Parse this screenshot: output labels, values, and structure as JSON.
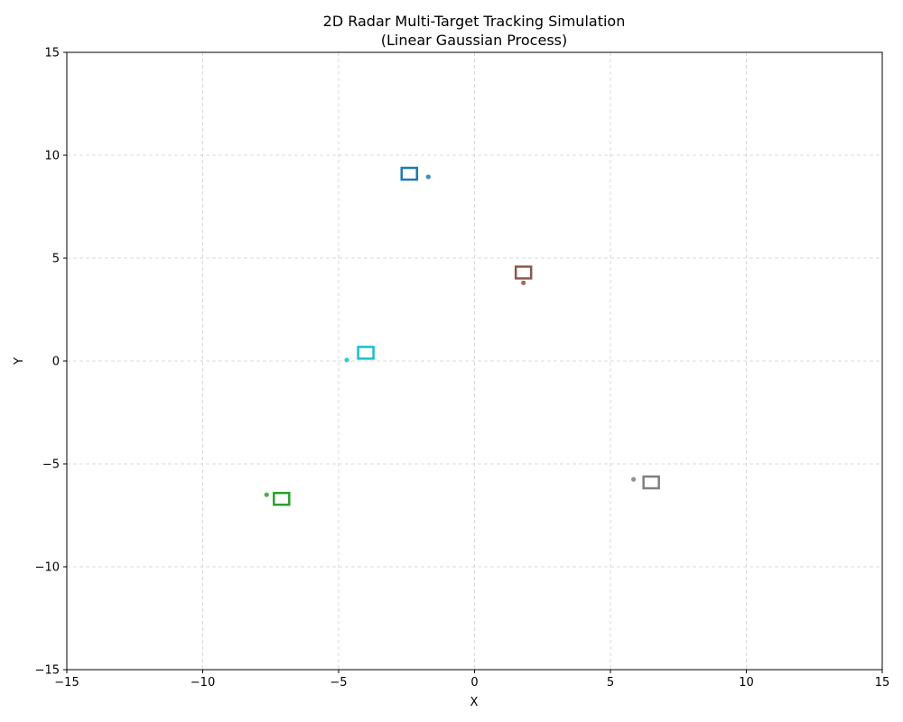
{
  "chart_data": {
    "type": "scatter",
    "title": "2D Radar Multi-Target Tracking Simulation",
    "subtitle": "(Linear Gaussian Process)",
    "xlabel": "X",
    "ylabel": "Y",
    "xlim": [
      -15,
      15
    ],
    "ylim": [
      -15,
      15
    ],
    "xticks": [
      -15,
      -10,
      -5,
      0,
      5,
      10,
      15
    ],
    "yticks": [
      -15,
      -10,
      -5,
      0,
      5,
      10,
      15
    ],
    "xtick_labels": [
      "−15",
      "−10",
      "−5",
      "0",
      "5",
      "10",
      "15"
    ],
    "ytick_labels": [
      "−15",
      "−10",
      "−5",
      "0",
      "5",
      "10",
      "15"
    ],
    "grid": true,
    "targets": [
      {
        "color": "#1f77b4",
        "true_position": [
          -2.4,
          9.1
        ],
        "measurement": [
          -1.7,
          8.95
        ]
      },
      {
        "color": "#8c564b",
        "true_position": [
          1.8,
          4.3
        ],
        "measurement": [
          1.8,
          3.8
        ]
      },
      {
        "color": "#17becf",
        "true_position": [
          -4.0,
          0.4
        ],
        "measurement": [
          -4.7,
          0.05
        ]
      },
      {
        "color": "#2ca02c",
        "true_position": [
          -7.1,
          -6.7
        ],
        "measurement": [
          -7.65,
          -6.5
        ]
      },
      {
        "color": "#7f7f7f",
        "true_position": [
          6.5,
          -5.9
        ],
        "measurement": [
          5.85,
          -5.75
        ]
      }
    ]
  }
}
